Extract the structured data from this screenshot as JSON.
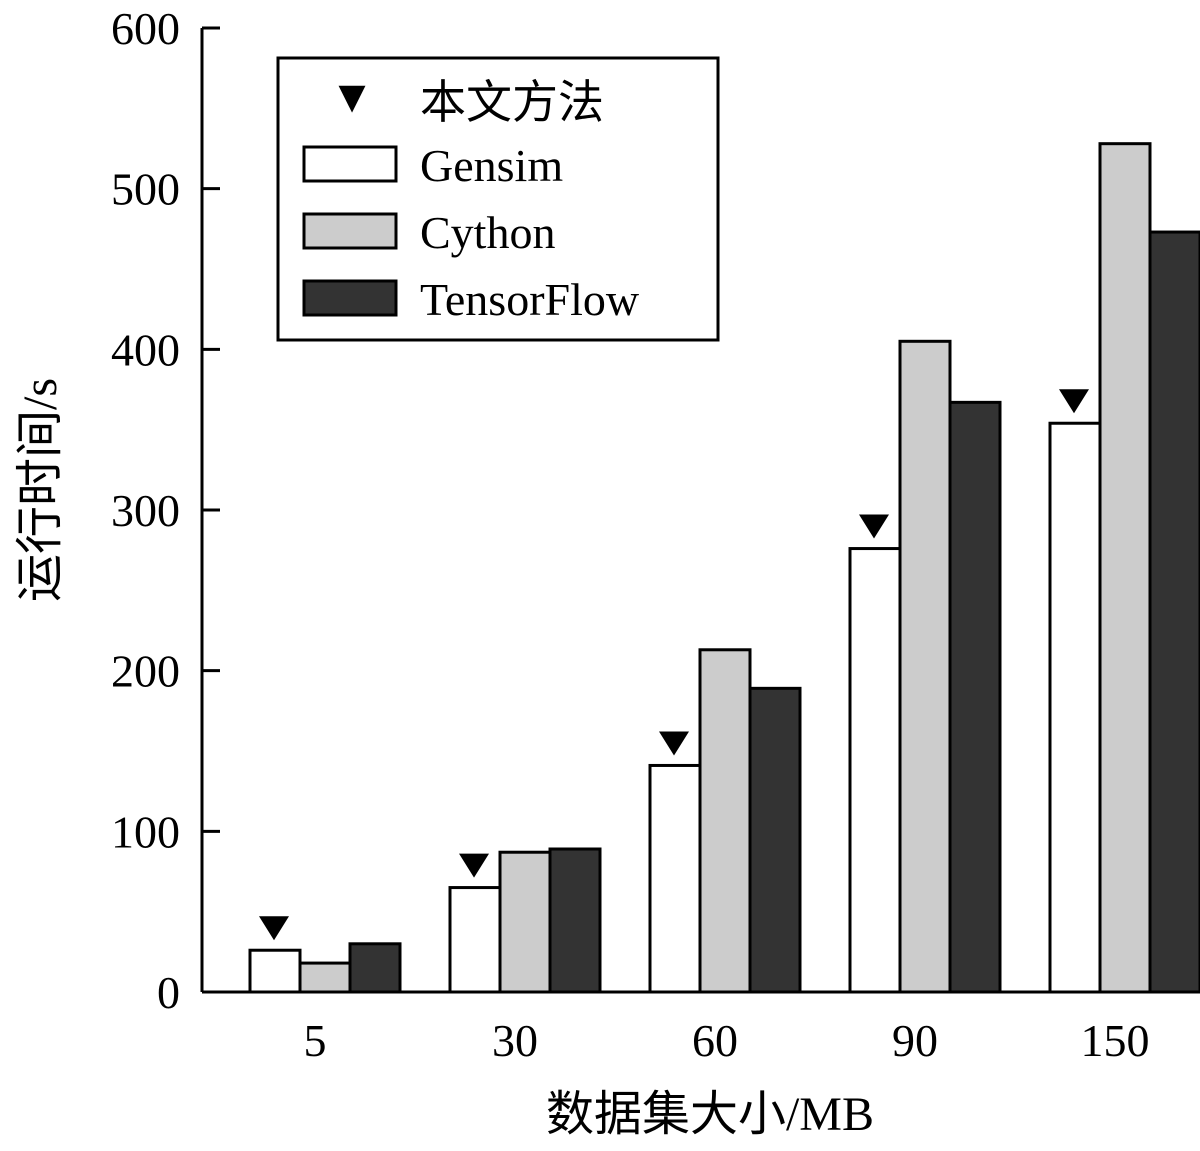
{
  "chart_data": {
    "type": "bar",
    "categories": [
      "5",
      "30",
      "60",
      "90",
      "150"
    ],
    "series": [
      {
        "name": "Gensim",
        "values": [
          26,
          65,
          141,
          276,
          354
        ],
        "color": "#ffffff"
      },
      {
        "name": "Cython",
        "values": [
          18,
          87,
          213,
          405,
          528
        ],
        "color": "#cccccc"
      },
      {
        "name": "TensorFlow",
        "values": [
          30,
          89,
          189,
          367,
          473
        ],
        "color": "#333333"
      }
    ],
    "markers": {
      "name": "本文方法",
      "symbol": "▼",
      "values": [
        26,
        65,
        141,
        276,
        354
      ]
    },
    "xlabel": "数据集大小/MB",
    "ylabel": "运行时间/s",
    "ylim": [
      0,
      600
    ],
    "yticks": [
      0,
      100,
      200,
      300,
      400,
      500,
      600
    ],
    "grid": false,
    "legend_position": "top-left"
  }
}
